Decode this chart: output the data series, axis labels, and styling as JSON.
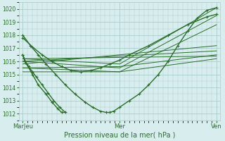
{
  "title": "",
  "xlabel": "Pression niveau de la mer( hPa )",
  "ylabel": "",
  "bg_color": "#d8eeee",
  "grid_color": "#aacccc",
  "line_color": "#2a6e2a",
  "marker_color": "#2a6e2a",
  "ylim": [
    1011.5,
    1020.5
  ],
  "xlim": [
    -0.02,
    1.02
  ],
  "xtick_labels": [
    "MarJeu",
    "Mer",
    "Ven"
  ],
  "xtick_positions": [
    0.0,
    0.5,
    1.0
  ],
  "ytick_values": [
    1012,
    1013,
    1014,
    1015,
    1016,
    1017,
    1018,
    1019,
    1020
  ],
  "lines": [
    {
      "x": [
        0.0,
        0.04,
        0.08,
        0.12,
        0.17,
        0.22,
        0.27,
        0.32,
        0.36,
        0.4,
        0.43,
        0.45,
        0.47,
        0.5,
        0.55,
        0.6,
        0.65,
        0.7,
        0.75,
        0.8,
        0.85,
        0.9,
        0.95,
        1.0
      ],
      "y": [
        1018.0,
        1017.2,
        1016.5,
        1015.8,
        1015.0,
        1014.2,
        1013.5,
        1012.9,
        1012.5,
        1012.2,
        1012.1,
        1012.1,
        1012.2,
        1012.5,
        1013.0,
        1013.5,
        1014.2,
        1015.0,
        1016.0,
        1017.2,
        1018.3,
        1019.3,
        1019.9,
        1020.1
      ],
      "marker": true,
      "lw": 1.0
    },
    {
      "x": [
        0.0,
        0.05,
        0.1,
        0.15,
        0.2,
        0.25,
        0.3,
        0.35,
        0.4,
        0.45,
        0.5,
        0.55,
        0.65,
        0.75,
        0.85,
        0.95,
        1.0
      ],
      "y": [
        1017.8,
        1017.1,
        1016.5,
        1016.0,
        1015.6,
        1015.3,
        1015.2,
        1015.3,
        1015.5,
        1015.8,
        1016.1,
        1016.5,
        1017.2,
        1018.0,
        1018.8,
        1019.4,
        1019.6
      ],
      "marker": true,
      "lw": 1.0
    },
    {
      "x": [
        0.0,
        1.0
      ],
      "y": [
        1016.2,
        1016.4
      ],
      "marker": false,
      "lw": 0.7
    },
    {
      "x": [
        0.0,
        1.0
      ],
      "y": [
        1016.0,
        1016.8
      ],
      "marker": false,
      "lw": 0.7
    },
    {
      "x": [
        0.0,
        1.0
      ],
      "y": [
        1015.8,
        1017.2
      ],
      "marker": false,
      "lw": 0.7
    },
    {
      "x": [
        0.0,
        0.5,
        1.0
      ],
      "y": [
        1015.5,
        1015.6,
        1016.5
      ],
      "marker": false,
      "lw": 0.7
    },
    {
      "x": [
        0.0,
        0.5,
        1.0
      ],
      "y": [
        1015.2,
        1015.2,
        1016.2
      ],
      "marker": false,
      "lw": 0.7
    },
    {
      "x": [
        0.0,
        0.5,
        1.0
      ],
      "y": [
        1016.0,
        1015.5,
        1019.5
      ],
      "marker": false,
      "lw": 0.7
    },
    {
      "x": [
        0.0,
        0.5,
        1.0
      ],
      "y": [
        1015.5,
        1015.2,
        1018.8
      ],
      "marker": false,
      "lw": 0.7
    },
    {
      "x": [
        0.0,
        0.5,
        1.0
      ],
      "y": [
        1016.2,
        1015.8,
        1020.1
      ],
      "marker": false,
      "lw": 0.7
    },
    {
      "x": [
        0.0,
        0.02,
        0.05,
        0.08,
        0.12,
        0.15,
        0.18,
        0.2,
        0.22,
        0.19,
        0.16,
        0.13,
        0.1,
        0.07,
        0.05,
        0.03,
        0.01,
        0.0
      ],
      "y": [
        1016.5,
        1015.8,
        1015.0,
        1014.2,
        1013.5,
        1012.9,
        1012.4,
        1012.1,
        1012.1,
        1012.5,
        1013.0,
        1013.6,
        1014.2,
        1014.8,
        1015.2,
        1015.6,
        1016.0,
        1016.5
      ],
      "marker": true,
      "lw": 1.0
    }
  ]
}
